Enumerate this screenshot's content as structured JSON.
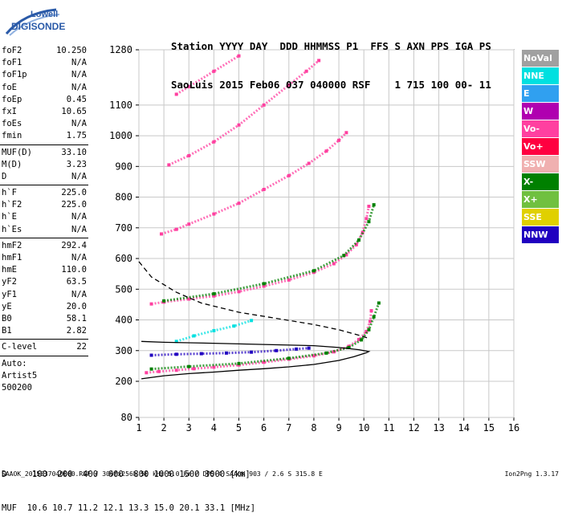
{
  "logo": {
    "line1": "Lowell",
    "line2": "DIGISONDE",
    "color": "#2a5aa8"
  },
  "header": {
    "labels": "Station YYYY DAY  DDD HHMMSS P1  FFS S AXN PPS IGA PS",
    "values": "SaoLuis 2015 Feb06 037 040000 RSF    1 715 100 00- 11"
  },
  "params": [
    {
      "name": "foF2",
      "value": "10.250"
    },
    {
      "name": "foF1",
      "value": "N/A"
    },
    {
      "name": "foF1p",
      "value": "N/A"
    },
    {
      "name": "foE",
      "value": "N/A"
    },
    {
      "name": "foEp",
      "value": "0.45"
    },
    {
      "name": "fxI",
      "value": "10.65"
    },
    {
      "name": "foEs",
      "value": "N/A"
    },
    {
      "name": "fmin",
      "value": "1.75"
    },
    {
      "sep": true
    },
    {
      "name": "MUF(D)",
      "value": "33.10"
    },
    {
      "name": "M(D)",
      "value": "3.23"
    },
    {
      "name": "D",
      "value": "N/A"
    },
    {
      "sep": true
    },
    {
      "name": "h`F",
      "value": "225.0"
    },
    {
      "name": "h`F2",
      "value": "225.0"
    },
    {
      "name": "h`E",
      "value": "N/A"
    },
    {
      "name": "h`Es",
      "value": "N/A"
    },
    {
      "sep": true
    },
    {
      "name": "hmF2",
      "value": "292.4"
    },
    {
      "name": "hmF1",
      "value": "N/A"
    },
    {
      "name": "hmE",
      "value": "110.0"
    },
    {
      "name": "yF2",
      "value": "63.5"
    },
    {
      "name": "yF1",
      "value": "N/A"
    },
    {
      "name": "yE",
      "value": "20.0"
    },
    {
      "name": "B0",
      "value": "58.1"
    },
    {
      "name": "B1",
      "value": "2.82"
    },
    {
      "sep": true
    },
    {
      "name": "C-level",
      "value": "22"
    },
    {
      "sep": true
    }
  ],
  "params_footer": [
    "Auto:",
    "Artist5",
    "500200"
  ],
  "legend": [
    {
      "label": "NoVal",
      "color": "#a0a0a0"
    },
    {
      "label": "NNE",
      "color": "#00e0e0"
    },
    {
      "label": "E",
      "color": "#30a0f0"
    },
    {
      "label": "W",
      "color": "#b000b0"
    },
    {
      "label": "Vo-",
      "color": "#ff40a0"
    },
    {
      "label": "Vo+",
      "color": "#ff0040"
    },
    {
      "label": "SSW",
      "color": "#f0b0b0"
    },
    {
      "label": "X-",
      "color": "#008000"
    },
    {
      "label": "X+",
      "color": "#70c040"
    },
    {
      "label": "SSE",
      "color": "#e0d000"
    },
    {
      "label": "NNW",
      "color": "#2000c0"
    }
  ],
  "muf_table": {
    "d_line": "D     100  200  400  600  800 1000 1500 3000 [km]",
    "muf_line": "MUF  10.6 10.7 11.2 12.1 13.3 15.0 20.1 33.1 [MHz]"
  },
  "footer": "SAAOK_2015037040000.RSF / 300fx256h 50 kHz 5.0 km / DPS-4 SAA0K 903 / 2.6 S 315.8 E",
  "version": "Ion2Png 1.3.17",
  "chart_data": {
    "type": "scatter",
    "title": "",
    "xlabel": "",
    "ylabel": "",
    "xlim": [
      1,
      16
    ],
    "ylim": [
      80,
      1280
    ],
    "xticks": [
      1,
      2,
      3,
      4,
      5,
      6,
      7,
      8,
      9,
      10,
      11,
      12,
      13,
      14,
      15,
      16
    ],
    "yticks": [
      80,
      200,
      300,
      400,
      500,
      600,
      700,
      800,
      900,
      1000,
      1100,
      1280
    ],
    "grid": true,
    "legend_position": "right",
    "series": [
      {
        "color": "#ff40a0",
        "points": [
          [
            1.3,
            228
          ],
          [
            1.8,
            232
          ],
          [
            2.5,
            236
          ],
          [
            3.2,
            241
          ],
          [
            4,
            246
          ],
          [
            5,
            253
          ],
          [
            6,
            262
          ],
          [
            7,
            272
          ],
          [
            8,
            283
          ],
          [
            8.8,
            296
          ],
          [
            9.4,
            314
          ],
          [
            9.8,
            336
          ],
          [
            10.1,
            362
          ],
          [
            10.25,
            395
          ],
          [
            10.3,
            430
          ]
        ]
      },
      {
        "color": "#ff40a0",
        "points": [
          [
            1.5,
            452
          ],
          [
            2,
            458
          ],
          [
            3,
            468
          ],
          [
            4,
            478
          ],
          [
            5,
            492
          ],
          [
            6,
            510
          ],
          [
            7,
            530
          ],
          [
            8,
            555
          ],
          [
            8.8,
            583
          ],
          [
            9.3,
            612
          ],
          [
            9.7,
            645
          ],
          [
            9.95,
            685
          ],
          [
            10.1,
            730
          ],
          [
            10.2,
            770
          ]
        ]
      },
      {
        "color": "#ff40a0",
        "points": [
          [
            1.9,
            680
          ],
          [
            2.5,
            695
          ],
          [
            3,
            712
          ],
          [
            4,
            745
          ],
          [
            5,
            780
          ],
          [
            6,
            825
          ],
          [
            7,
            870
          ],
          [
            7.8,
            910
          ],
          [
            8.5,
            950
          ],
          [
            9,
            985
          ],
          [
            9.3,
            1010
          ]
        ]
      },
      {
        "color": "#ff40a0",
        "points": [
          [
            2.2,
            905
          ],
          [
            3,
            935
          ],
          [
            4,
            980
          ],
          [
            5,
            1035
          ],
          [
            6,
            1100
          ],
          [
            7,
            1165
          ],
          [
            7.7,
            1210
          ],
          [
            8.2,
            1245
          ]
        ]
      },
      {
        "color": "#ff40a0",
        "points": [
          [
            2.5,
            1135
          ],
          [
            3,
            1160
          ],
          [
            4,
            1210
          ],
          [
            5,
            1260
          ]
        ]
      },
      {
        "color": "#008000",
        "points": [
          [
            1.5,
            240
          ],
          [
            3,
            248
          ],
          [
            5,
            258
          ],
          [
            7,
            275
          ],
          [
            8.5,
            292
          ],
          [
            9.4,
            310
          ],
          [
            9.9,
            335
          ],
          [
            10.2,
            368
          ],
          [
            10.4,
            410
          ],
          [
            10.6,
            455
          ]
        ]
      },
      {
        "color": "#008000",
        "points": [
          [
            2,
            462
          ],
          [
            4,
            485
          ],
          [
            6,
            518
          ],
          [
            8,
            560
          ],
          [
            9.2,
            610
          ],
          [
            9.8,
            660
          ],
          [
            10.2,
            720
          ],
          [
            10.4,
            775
          ]
        ]
      },
      {
        "color": "#2000c0",
        "points": [
          [
            1.5,
            285
          ],
          [
            2.5,
            288
          ],
          [
            3.5,
            290
          ],
          [
            4.5,
            292
          ],
          [
            5.5,
            295
          ],
          [
            6.5,
            300
          ],
          [
            7.3,
            305
          ],
          [
            7.8,
            308
          ]
        ]
      },
      {
        "color": "#00e0e0",
        "points": [
          [
            2.5,
            330
          ],
          [
            3.2,
            348
          ],
          [
            4,
            365
          ],
          [
            4.8,
            380
          ],
          [
            5.5,
            398
          ]
        ]
      },
      {
        "name": "profile",
        "color": "#000000",
        "points": [
          [
            1.1,
            208
          ],
          [
            2,
            218
          ],
          [
            3,
            225
          ],
          [
            4,
            230
          ],
          [
            5,
            236
          ],
          [
            6,
            241
          ],
          [
            7,
            247
          ],
          [
            8,
            255
          ],
          [
            9,
            268
          ],
          [
            9.6,
            280
          ],
          [
            10.1,
            293
          ],
          [
            10.2,
            297
          ],
          [
            9.8,
            303
          ],
          [
            9,
            310
          ],
          [
            8,
            316
          ],
          [
            6,
            320
          ],
          [
            4,
            324
          ],
          [
            2,
            327
          ],
          [
            1.1,
            330
          ]
        ]
      },
      {
        "name": "extrapolation",
        "color": "#000000",
        "dashed": true,
        "points": [
          [
            1,
            590
          ],
          [
            1.5,
            540
          ],
          [
            2.5,
            490
          ],
          [
            3.5,
            455
          ],
          [
            5,
            425
          ],
          [
            6.5,
            405
          ],
          [
            8,
            385
          ],
          [
            9,
            368
          ],
          [
            9.8,
            350
          ],
          [
            10.2,
            340
          ]
        ]
      }
    ]
  }
}
